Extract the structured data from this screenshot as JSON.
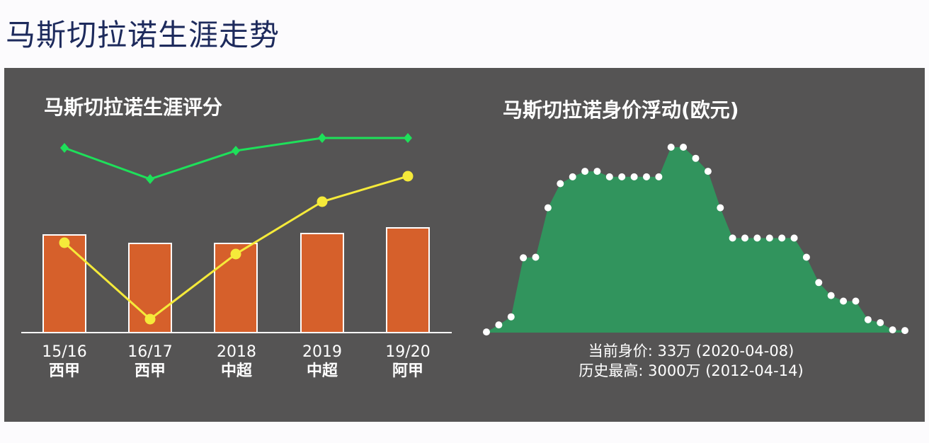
{
  "page": {
    "title": "马斯切拉诺生涯走势"
  },
  "colors": {
    "panel_bg": "#555454",
    "bar_fill": "#d6602b",
    "bar_stroke": "#ffffff",
    "green_line": "#1ee05a",
    "yellow_line": "#f5ea3a",
    "area_fill": "#31945d",
    "area_dot": "#ffffff"
  },
  "left_chart": {
    "title": "马斯切拉诺生涯评分",
    "seasons": [
      {
        "label": "15/16",
        "league": "西甲"
      },
      {
        "label": "16/17",
        "league": "西甲"
      },
      {
        "label": "2018",
        "league": "中超"
      },
      {
        "label": "2019",
        "league": "中超"
      },
      {
        "label": "19/20",
        "league": "阿甲"
      }
    ]
  },
  "right_chart": {
    "title": "马斯切拉诺身价浮动(欧元)",
    "current_value": "当前身价: 33万 (2020-04-08)",
    "peak_value": "历史最高: 3000万 (2012-04-14)"
  },
  "chart_data": [
    {
      "type": "bar",
      "title": "马斯切拉诺生涯评分",
      "categories": [
        "15/16 西甲",
        "16/17 西甲",
        "2018 中超",
        "2019 中超",
        "19/20 阿甲"
      ],
      "series": [
        {
          "name": "bars",
          "kind": "bar",
          "color": "#d6602b",
          "values": [
            138,
            126,
            126,
            140,
            148
          ]
        },
        {
          "name": "green-line",
          "kind": "line",
          "marker": "diamond",
          "color": "#1ee05a",
          "values": [
            261,
            217,
            257,
            275,
            275
          ]
        },
        {
          "name": "yellow-line",
          "kind": "line",
          "marker": "circle",
          "color": "#f5ea3a",
          "values": [
            127,
            19,
            111,
            185,
            221
          ]
        }
      ],
      "xlabel": "",
      "ylabel": "",
      "note": "No y-axis shown; values are relative heights in px above baseline",
      "grid": false,
      "legend": "none"
    },
    {
      "type": "area",
      "title": "马斯切拉诺身价浮动(欧元)",
      "x": [
        1,
        2,
        3,
        4,
        5,
        6,
        7,
        8,
        9,
        10,
        11,
        12,
        13,
        14,
        15,
        16,
        17,
        18,
        19,
        20,
        21,
        22,
        23,
        24,
        25,
        26,
        27,
        28,
        29,
        30,
        31,
        32,
        33,
        34,
        35
      ],
      "values": [
        10,
        125,
        255,
        1210,
        1220,
        2020,
        2410,
        2520,
        2610,
        2610,
        2520,
        2520,
        2520,
        2520,
        2520,
        3000,
        3000,
        2820,
        2610,
        2020,
        1530,
        1530,
        1530,
        1530,
        1530,
        1530,
        1220,
        810,
        600,
        510,
        510,
        210,
        160,
        45,
        33
      ],
      "unit": "万欧元",
      "annotations": [
        "当前身价: 33万 (2020-04-08)",
        "历史最高: 3000万 (2012-04-14)"
      ],
      "ylim": [
        0,
        3000
      ],
      "grid": false,
      "legend": "none",
      "marker": "white-dot"
    }
  ]
}
